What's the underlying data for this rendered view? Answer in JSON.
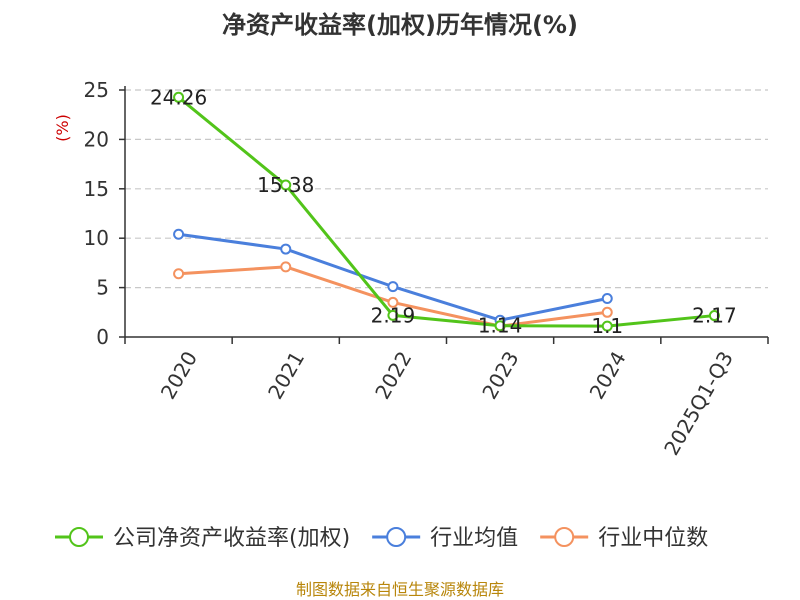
{
  "chart_data": {
    "type": "line",
    "title": "净资产收益率(加权)历年情况(%)",
    "ylabel": "(%)",
    "xlabel": "",
    "categories": [
      "2020",
      "2021",
      "2022",
      "2023",
      "2024",
      "2025Q1-Q3"
    ],
    "ylim": [
      0,
      25
    ],
    "yticks": [
      0,
      5,
      10,
      15,
      20,
      25
    ],
    "grid": true,
    "legend_position": "bottom",
    "series": [
      {
        "name": "公司净资产收益率(加权)",
        "color": "#52c41a",
        "values": [
          24.26,
          15.38,
          2.19,
          1.14,
          1.1,
          2.17
        ],
        "labels": [
          "24.26",
          "15.38",
          "2.19",
          "1.14",
          "1.1",
          "2.17"
        ]
      },
      {
        "name": "行业均值",
        "color": "#4a7fdc",
        "values": [
          10.4,
          8.9,
          5.1,
          1.7,
          3.9,
          null
        ]
      },
      {
        "name": "行业中位数",
        "color": "#f4925f",
        "values": [
          6.4,
          7.1,
          3.5,
          1.1,
          2.5,
          null
        ]
      }
    ]
  },
  "source_note": "制图数据来自恒生聚源数据库"
}
